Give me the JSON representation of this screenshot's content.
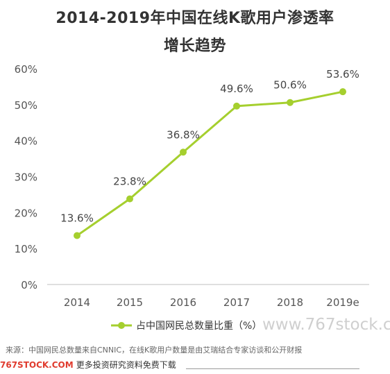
{
  "title": {
    "line1": "2014-2019年中国在线K歌用户渗透率",
    "line2": "增长趋势"
  },
  "chart_data": {
    "type": "line",
    "categories": [
      "2014",
      "2015",
      "2016",
      "2017",
      "2018",
      "2019e"
    ],
    "series": [
      {
        "name": "占中国网民总数量比重（%）",
        "values": [
          13.6,
          23.8,
          36.8,
          49.6,
          50.6,
          53.6
        ],
        "labels": [
          "13.6%",
          "23.8%",
          "36.8%",
          "49.6%",
          "50.6%",
          "53.6%"
        ]
      }
    ],
    "ylim": [
      0,
      60
    ],
    "yticks": [
      "0%",
      "10%",
      "20%",
      "30%",
      "40%",
      "50%",
      "60%"
    ],
    "xlabel": "",
    "ylabel": "",
    "grid": false,
    "legend_position": "bottom",
    "line_color": "#a5cf2e"
  },
  "watermark": "www.767stock.cc",
  "source": "来源：中国网民总数量来自CNNIC，在线K歌用户数量是由艾瑞结合专家访谈和公开财报",
  "footer": {
    "brand": "767STOCK.COM",
    "text": "更多投资研究资料免费下载"
  }
}
